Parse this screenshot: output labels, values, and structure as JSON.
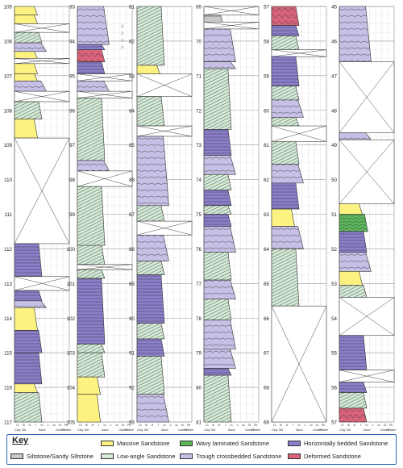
{
  "facies_colors": {
    "massive": "#fcf282",
    "low": "#d3ead6",
    "trough": "#c7c0e6",
    "horiz": "#8b7fcb",
    "wavy": "#5cb65a",
    "deformed": "#d9637a",
    "silt": "#c8c8c8",
    "cover": "#ffffff"
  },
  "grain_labels": [
    "Clay",
    "Silt",
    "Sand",
    "Gravel",
    "Pebble"
  ],
  "grain_sublabels": [
    "Cl",
    "Si",
    "vf",
    "f",
    "m",
    "c",
    "vc",
    "Gr",
    "Pb"
  ],
  "columns": [
    {
      "ticks": [
        "105",
        "106",
        "107",
        "108",
        "109",
        "110",
        "111",
        "112",
        "113",
        "114",
        "115",
        "116",
        "117"
      ],
      "top": 105,
      "bottom": 117,
      "units": [
        {
          "top": 105.0,
          "bottom": 105.25,
          "facies": "massive"
        },
        {
          "top": 105.25,
          "bottom": 105.5,
          "facies": "massive"
        },
        {
          "top": 105.5,
          "bottom": 105.75,
          "facies": "cover"
        },
        {
          "top": 105.75,
          "bottom": 106.05,
          "facies": "low"
        },
        {
          "top": 106.05,
          "bottom": 106.3,
          "facies": "trough"
        },
        {
          "top": 106.3,
          "bottom": 106.5,
          "facies": "massive"
        },
        {
          "top": 106.5,
          "bottom": 106.65,
          "facies": "cover"
        },
        {
          "top": 106.65,
          "bottom": 106.95,
          "facies": "massive"
        },
        {
          "top": 106.95,
          "bottom": 107.15,
          "facies": "massive"
        },
        {
          "top": 107.15,
          "bottom": 107.45,
          "facies": "trough"
        },
        {
          "top": 107.45,
          "bottom": 107.75,
          "facies": "cover"
        },
        {
          "top": 107.75,
          "bottom": 108.25,
          "facies": "low"
        },
        {
          "top": 108.25,
          "bottom": 108.8,
          "facies": "massive"
        },
        {
          "top": 108.8,
          "bottom": 111.85,
          "facies": "cover"
        },
        {
          "top": 111.85,
          "bottom": 112.8,
          "facies": "horiz"
        },
        {
          "top": 112.8,
          "bottom": 113.2,
          "facies": "cover"
        },
        {
          "top": 113.2,
          "bottom": 113.5,
          "facies": "horiz"
        },
        {
          "top": 113.5,
          "bottom": 113.7,
          "facies": "trough"
        },
        {
          "top": 113.7,
          "bottom": 114.35,
          "facies": "massive"
        },
        {
          "top": 114.35,
          "bottom": 115.0,
          "facies": "horiz"
        },
        {
          "top": 115.0,
          "bottom": 115.9,
          "facies": "horiz"
        },
        {
          "top": 115.9,
          "bottom": 116.15,
          "facies": "massive"
        },
        {
          "top": 116.15,
          "bottom": 117.0,
          "facies": "low"
        }
      ],
      "symbols": []
    },
    {
      "ticks": [
        "93",
        "94",
        "95",
        "96",
        "97",
        "98",
        "99",
        "100",
        "101",
        "102",
        "103",
        "104",
        "105"
      ],
      "top": 93,
      "bottom": 105,
      "units": [
        {
          "top": 93.0,
          "bottom": 94.1,
          "facies": "trough"
        },
        {
          "top": 94.1,
          "bottom": 94.25,
          "facies": "horiz"
        },
        {
          "top": 94.25,
          "bottom": 94.6,
          "facies": "deformed"
        },
        {
          "top": 94.6,
          "bottom": 94.95,
          "facies": "horiz"
        },
        {
          "top": 94.95,
          "bottom": 95.15,
          "facies": "cover"
        },
        {
          "top": 95.15,
          "bottom": 95.45,
          "facies": "trough"
        },
        {
          "top": 95.45,
          "bottom": 95.65,
          "facies": "cover"
        },
        {
          "top": 95.65,
          "bottom": 97.45,
          "facies": "low"
        },
        {
          "top": 97.45,
          "bottom": 97.75,
          "facies": "trough"
        },
        {
          "top": 97.75,
          "bottom": 98.2,
          "facies": "cover"
        },
        {
          "top": 98.2,
          "bottom": 99.9,
          "facies": "low"
        },
        {
          "top": 99.9,
          "bottom": 100.45,
          "facies": "low"
        },
        {
          "top": 100.45,
          "bottom": 100.6,
          "facies": "cover"
        },
        {
          "top": 100.6,
          "bottom": 100.85,
          "facies": "low"
        },
        {
          "top": 100.85,
          "bottom": 102.75,
          "facies": "horiz"
        },
        {
          "top": 102.75,
          "bottom": 103.0,
          "facies": "low"
        },
        {
          "top": 103.0,
          "bottom": 103.7,
          "facies": "low"
        },
        {
          "top": 103.7,
          "bottom": 104.2,
          "facies": "massive"
        },
        {
          "top": 104.2,
          "bottom": 105.0,
          "facies": "massive"
        }
      ],
      "symbols": [
        {
          "depth": 93.55,
          "glyph": "△"
        },
        {
          "depth": 93.75,
          "glyph": "△"
        },
        {
          "depth": 93.95,
          "glyph": "△"
        },
        {
          "depth": 94.15,
          "glyph": "△"
        }
      ]
    },
    {
      "ticks": [
        "81",
        "82",
        "83",
        "84",
        "85",
        "86",
        "87",
        "88",
        "89",
        "90",
        "91",
        "92",
        "93"
      ],
      "top": 81,
      "bottom": 93,
      "units": [
        {
          "top": 81.0,
          "bottom": 82.7,
          "facies": "low"
        },
        {
          "top": 82.7,
          "bottom": 82.95,
          "facies": "massive"
        },
        {
          "top": 82.95,
          "bottom": 83.6,
          "facies": "cover"
        },
        {
          "top": 83.6,
          "bottom": 84.45,
          "facies": "low"
        },
        {
          "top": 84.45,
          "bottom": 84.75,
          "facies": "cover"
        },
        {
          "top": 84.75,
          "bottom": 86.75,
          "facies": "trough"
        },
        {
          "top": 86.75,
          "bottom": 87.2,
          "facies": "low"
        },
        {
          "top": 87.2,
          "bottom": 87.6,
          "facies": "cover"
        },
        {
          "top": 87.6,
          "bottom": 88.35,
          "facies": "trough"
        },
        {
          "top": 88.35,
          "bottom": 88.75,
          "facies": "low"
        },
        {
          "top": 88.75,
          "bottom": 90.15,
          "facies": "horiz"
        },
        {
          "top": 90.15,
          "bottom": 90.6,
          "facies": "low"
        },
        {
          "top": 90.6,
          "bottom": 91.1,
          "facies": "horiz"
        },
        {
          "top": 91.1,
          "bottom": 92.2,
          "facies": "low"
        },
        {
          "top": 92.2,
          "bottom": 93.0,
          "facies": "trough"
        }
      ],
      "symbols": []
    },
    {
      "ticks": [
        "69",
        "70",
        "71",
        "72",
        "73",
        "74",
        "75",
        "76",
        "77",
        "78",
        "79",
        "80",
        "81"
      ],
      "top": 69,
      "bottom": 81,
      "units": [
        {
          "top": 69.0,
          "bottom": 69.25,
          "facies": "cover"
        },
        {
          "top": 69.25,
          "bottom": 69.45,
          "facies": "silt"
        },
        {
          "top": 69.45,
          "bottom": 69.65,
          "facies": "cover"
        },
        {
          "top": 69.65,
          "bottom": 70.6,
          "facies": "trough"
        },
        {
          "top": 70.6,
          "bottom": 70.8,
          "facies": "trough"
        },
        {
          "top": 70.8,
          "bottom": 72.55,
          "facies": "low"
        },
        {
          "top": 72.55,
          "bottom": 73.3,
          "facies": "horiz"
        },
        {
          "top": 73.3,
          "bottom": 73.85,
          "facies": "trough"
        },
        {
          "top": 73.85,
          "bottom": 74.3,
          "facies": "low"
        },
        {
          "top": 74.3,
          "bottom": 74.75,
          "facies": "horiz"
        },
        {
          "top": 74.75,
          "bottom": 75.0,
          "facies": "low"
        },
        {
          "top": 75.0,
          "bottom": 75.35,
          "facies": "horiz"
        },
        {
          "top": 75.35,
          "bottom": 76.1,
          "facies": "trough"
        },
        {
          "top": 76.1,
          "bottom": 76.9,
          "facies": "low"
        },
        {
          "top": 76.9,
          "bottom": 77.45,
          "facies": "trough"
        },
        {
          "top": 77.45,
          "bottom": 78.05,
          "facies": "low"
        },
        {
          "top": 78.05,
          "bottom": 78.9,
          "facies": "trough"
        },
        {
          "top": 78.9,
          "bottom": 79.45,
          "facies": "trough"
        },
        {
          "top": 79.45,
          "bottom": 79.65,
          "facies": "horiz"
        },
        {
          "top": 79.65,
          "bottom": 81.0,
          "facies": "low"
        }
      ],
      "symbols": []
    },
    {
      "ticks": [
        "57",
        "58",
        "59",
        "60",
        "61",
        "62",
        "63",
        "64",
        "65",
        "66",
        "67",
        "68",
        "69"
      ],
      "top": 57,
      "bottom": 69,
      "units": [
        {
          "top": 57.0,
          "bottom": 57.55,
          "facies": "deformed"
        },
        {
          "top": 57.55,
          "bottom": 57.85,
          "facies": "horiz"
        },
        {
          "top": 57.85,
          "bottom": 58.25,
          "facies": "low"
        },
        {
          "top": 58.25,
          "bottom": 58.45,
          "facies": "cover"
        },
        {
          "top": 58.45,
          "bottom": 59.3,
          "facies": "horiz"
        },
        {
          "top": 59.3,
          "bottom": 59.7,
          "facies": "low"
        },
        {
          "top": 59.7,
          "bottom": 60.2,
          "facies": "trough"
        },
        {
          "top": 60.2,
          "bottom": 60.45,
          "facies": "low"
        },
        {
          "top": 60.45,
          "bottom": 60.9,
          "facies": "cover"
        },
        {
          "top": 60.9,
          "bottom": 61.55,
          "facies": "low"
        },
        {
          "top": 61.55,
          "bottom": 62.1,
          "facies": "trough"
        },
        {
          "top": 62.1,
          "bottom": 62.85,
          "facies": "horiz"
        },
        {
          "top": 62.85,
          "bottom": 63.35,
          "facies": "massive"
        },
        {
          "top": 63.35,
          "bottom": 64.0,
          "facies": "trough"
        },
        {
          "top": 64.0,
          "bottom": 65.65,
          "facies": "low"
        },
        {
          "top": 65.65,
          "bottom": 69.0,
          "facies": "cover"
        }
      ],
      "symbols": []
    },
    {
      "ticks": [
        "45",
        "46",
        "47",
        "48",
        "49",
        "50",
        "51",
        "52",
        "53",
        "54",
        "55",
        "56",
        "57"
      ],
      "top": 45,
      "bottom": 57,
      "units": [
        {
          "top": 45.0,
          "bottom": 46.6,
          "facies": "trough"
        },
        {
          "top": 46.6,
          "bottom": 48.65,
          "facies": "cover"
        },
        {
          "top": 48.65,
          "bottom": 48.85,
          "facies": "trough"
        },
        {
          "top": 48.85,
          "bottom": 50.7,
          "facies": "cover"
        },
        {
          "top": 50.7,
          "bottom": 51.0,
          "facies": "massive"
        },
        {
          "top": 51.0,
          "bottom": 51.5,
          "facies": "wavy"
        },
        {
          "top": 51.5,
          "bottom": 52.1,
          "facies": "horiz"
        },
        {
          "top": 52.1,
          "bottom": 52.65,
          "facies": "trough"
        },
        {
          "top": 52.65,
          "bottom": 53.05,
          "facies": "massive"
        },
        {
          "top": 53.05,
          "bottom": 53.4,
          "facies": "low"
        },
        {
          "top": 53.4,
          "bottom": 54.5,
          "facies": "cover"
        },
        {
          "top": 54.5,
          "bottom": 55.5,
          "facies": "horiz"
        },
        {
          "top": 55.5,
          "bottom": 55.85,
          "facies": "cover"
        },
        {
          "top": 55.85,
          "bottom": 56.15,
          "facies": "horiz"
        },
        {
          "top": 56.15,
          "bottom": 56.6,
          "facies": "low"
        },
        {
          "top": 56.6,
          "bottom": 57.0,
          "facies": "deformed"
        }
      ],
      "symbols": []
    }
  ],
  "key": {
    "title": "Key",
    "items": [
      {
        "facies": "massive",
        "label": "Massive Sandstone"
      },
      {
        "facies": "wavy",
        "label": "Wavy laminated Sandstone"
      },
      {
        "facies": "horiz",
        "label": "Horizontally bedded Sandstone"
      },
      {
        "facies": "silt",
        "label": "Siltstone/Sandy Siltstone"
      },
      {
        "facies": "low",
        "label": "Low-angle Sandstone"
      },
      {
        "facies": "trough",
        "label": "Trough crossbedded Sandstone"
      },
      {
        "facies": "deformed",
        "label": "Deformed Sandstone"
      }
    ]
  }
}
